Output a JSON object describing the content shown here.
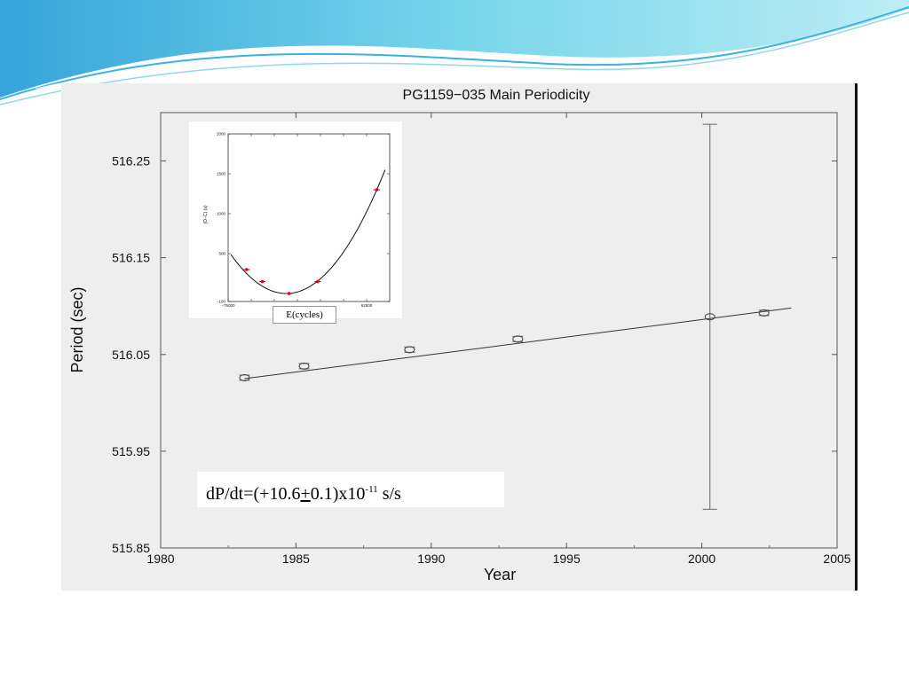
{
  "chart_data": [
    {
      "type": "scatter",
      "title": "PG1159−035 Main Periodicity",
      "xlabel": "Year",
      "ylabel": "Period (sec)",
      "xlim": [
        1980,
        2005
      ],
      "ylim": [
        515.85,
        516.3
      ],
      "x_ticks": [
        "1980",
        "1985",
        "1990",
        "1995",
        "2000",
        "2005"
      ],
      "y_ticks": [
        "515.85",
        "515.95",
        "516.05",
        "516.15",
        "516.25"
      ],
      "grid": false,
      "series": [
        {
          "x": [
            1983.1,
            1985.3,
            1989.2,
            1993.2,
            2000.3,
            2002.3
          ],
          "y": [
            516.026,
            516.038,
            516.055,
            516.066,
            516.089,
            516.093
          ],
          "yerr": [
            0.002,
            0.002,
            0.002,
            0.002,
            0.199,
            0.003
          ]
        }
      ],
      "fit_line": {
        "x": [
          1983.1,
          2003.3
        ],
        "y": [
          516.025,
          516.098
        ]
      }
    },
    {
      "type": "scatter",
      "xlabel": "E(cycles)",
      "ylabel": "(O−C) (s)",
      "xlim": [
        -75000,
        100000
      ],
      "ylim": [
        -100,
        2000
      ],
      "x_ticks": [
        "−75000",
        "",
        "",
        "",
        "",
        "",
        "62500"
      ],
      "y_ticks": [
        "−100",
        "500",
        "1000",
        "1500",
        "2000"
      ],
      "grid": false,
      "series": [
        {
          "x": [
            -55000,
            -38000,
            -9000,
            22000,
            86000
          ],
          "y": [
            300,
            150,
            0,
            150,
            1300
          ],
          "xerr": [
            3500,
            3500,
            3500,
            3500,
            3500
          ]
        }
      ],
      "fit_curve": {
        "x_range": [
          -72000,
          95000
        ],
        "vertex_x": -12000,
        "vertex_y": 0
      }
    }
  ],
  "formula": {
    "base": "dP/dt=(+10.6",
    "pm": "+",
    "after_pm": "0.1)x10",
    "exponent": "-11",
    "unit": " s/s"
  }
}
